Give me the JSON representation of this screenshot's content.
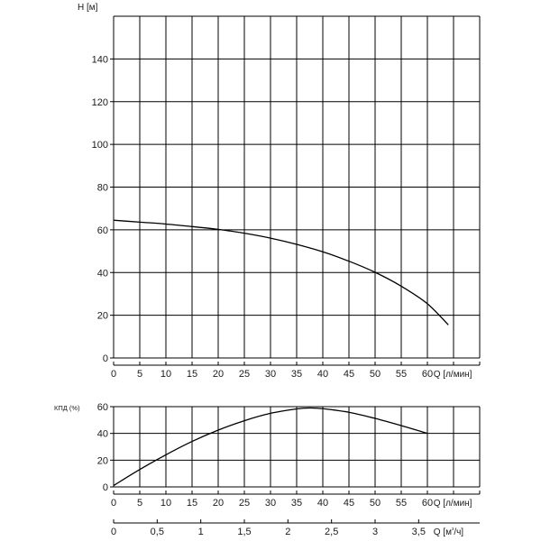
{
  "chart_data": [
    {
      "type": "line",
      "title": "",
      "ylabel": "H [м]",
      "xlabel": "Q [л/мин]",
      "xlim": [
        0,
        70
      ],
      "ylim": [
        0,
        160
      ],
      "x_ticks": [
        "0",
        "5",
        "10",
        "15",
        "20",
        "25",
        "30",
        "35",
        "40",
        "45",
        "50",
        "55",
        "60"
      ],
      "y_ticks": [
        "0",
        "20",
        "40",
        "60",
        "80",
        "100",
        "120",
        "140"
      ],
      "grid": true,
      "series": [
        {
          "color": "#000000",
          "x": [
            0,
            5,
            10,
            15,
            20,
            25,
            30,
            35,
            40,
            45,
            50,
            55,
            60,
            64
          ],
          "y": [
            64.5,
            63.6,
            62.7,
            61.5,
            60.2,
            58.4,
            56.1,
            53.2,
            49.7,
            45.3,
            40.1,
            33.6,
            25.4,
            15.5
          ]
        }
      ]
    },
    {
      "type": "line",
      "title": "",
      "ylabel": "КПД (%)",
      "xlabel": "Q [л/мин]",
      "xlim": [
        0,
        70
      ],
      "ylim": [
        0,
        60
      ],
      "x_ticks": [
        "0",
        "5",
        "10",
        "15",
        "20",
        "25",
        "30",
        "35",
        "40",
        "45",
        "50",
        "55",
        "60"
      ],
      "y_ticks": [
        "0",
        "20",
        "40",
        "60"
      ],
      "grid": true,
      "series": [
        {
          "color": "#000000",
          "x": [
            0,
            5,
            10,
            15,
            20,
            25,
            30,
            35,
            37.5,
            40,
            45,
            50,
            55,
            60
          ],
          "y": [
            1,
            13,
            24,
            34,
            42.5,
            49.5,
            55,
            58.3,
            59,
            58.5,
            55.8,
            51.2,
            45.8,
            40
          ]
        }
      ],
      "secondary_x_axis": {
        "label": "Q [м³/ч]",
        "ticks": [
          "0",
          "0,5",
          "1",
          "1,5",
          "2",
          "2,5",
          "3",
          "3,5"
        ],
        "tick_values": [
          0,
          0.5,
          1,
          1.5,
          2,
          2.5,
          3,
          3.5
        ]
      }
    }
  ]
}
